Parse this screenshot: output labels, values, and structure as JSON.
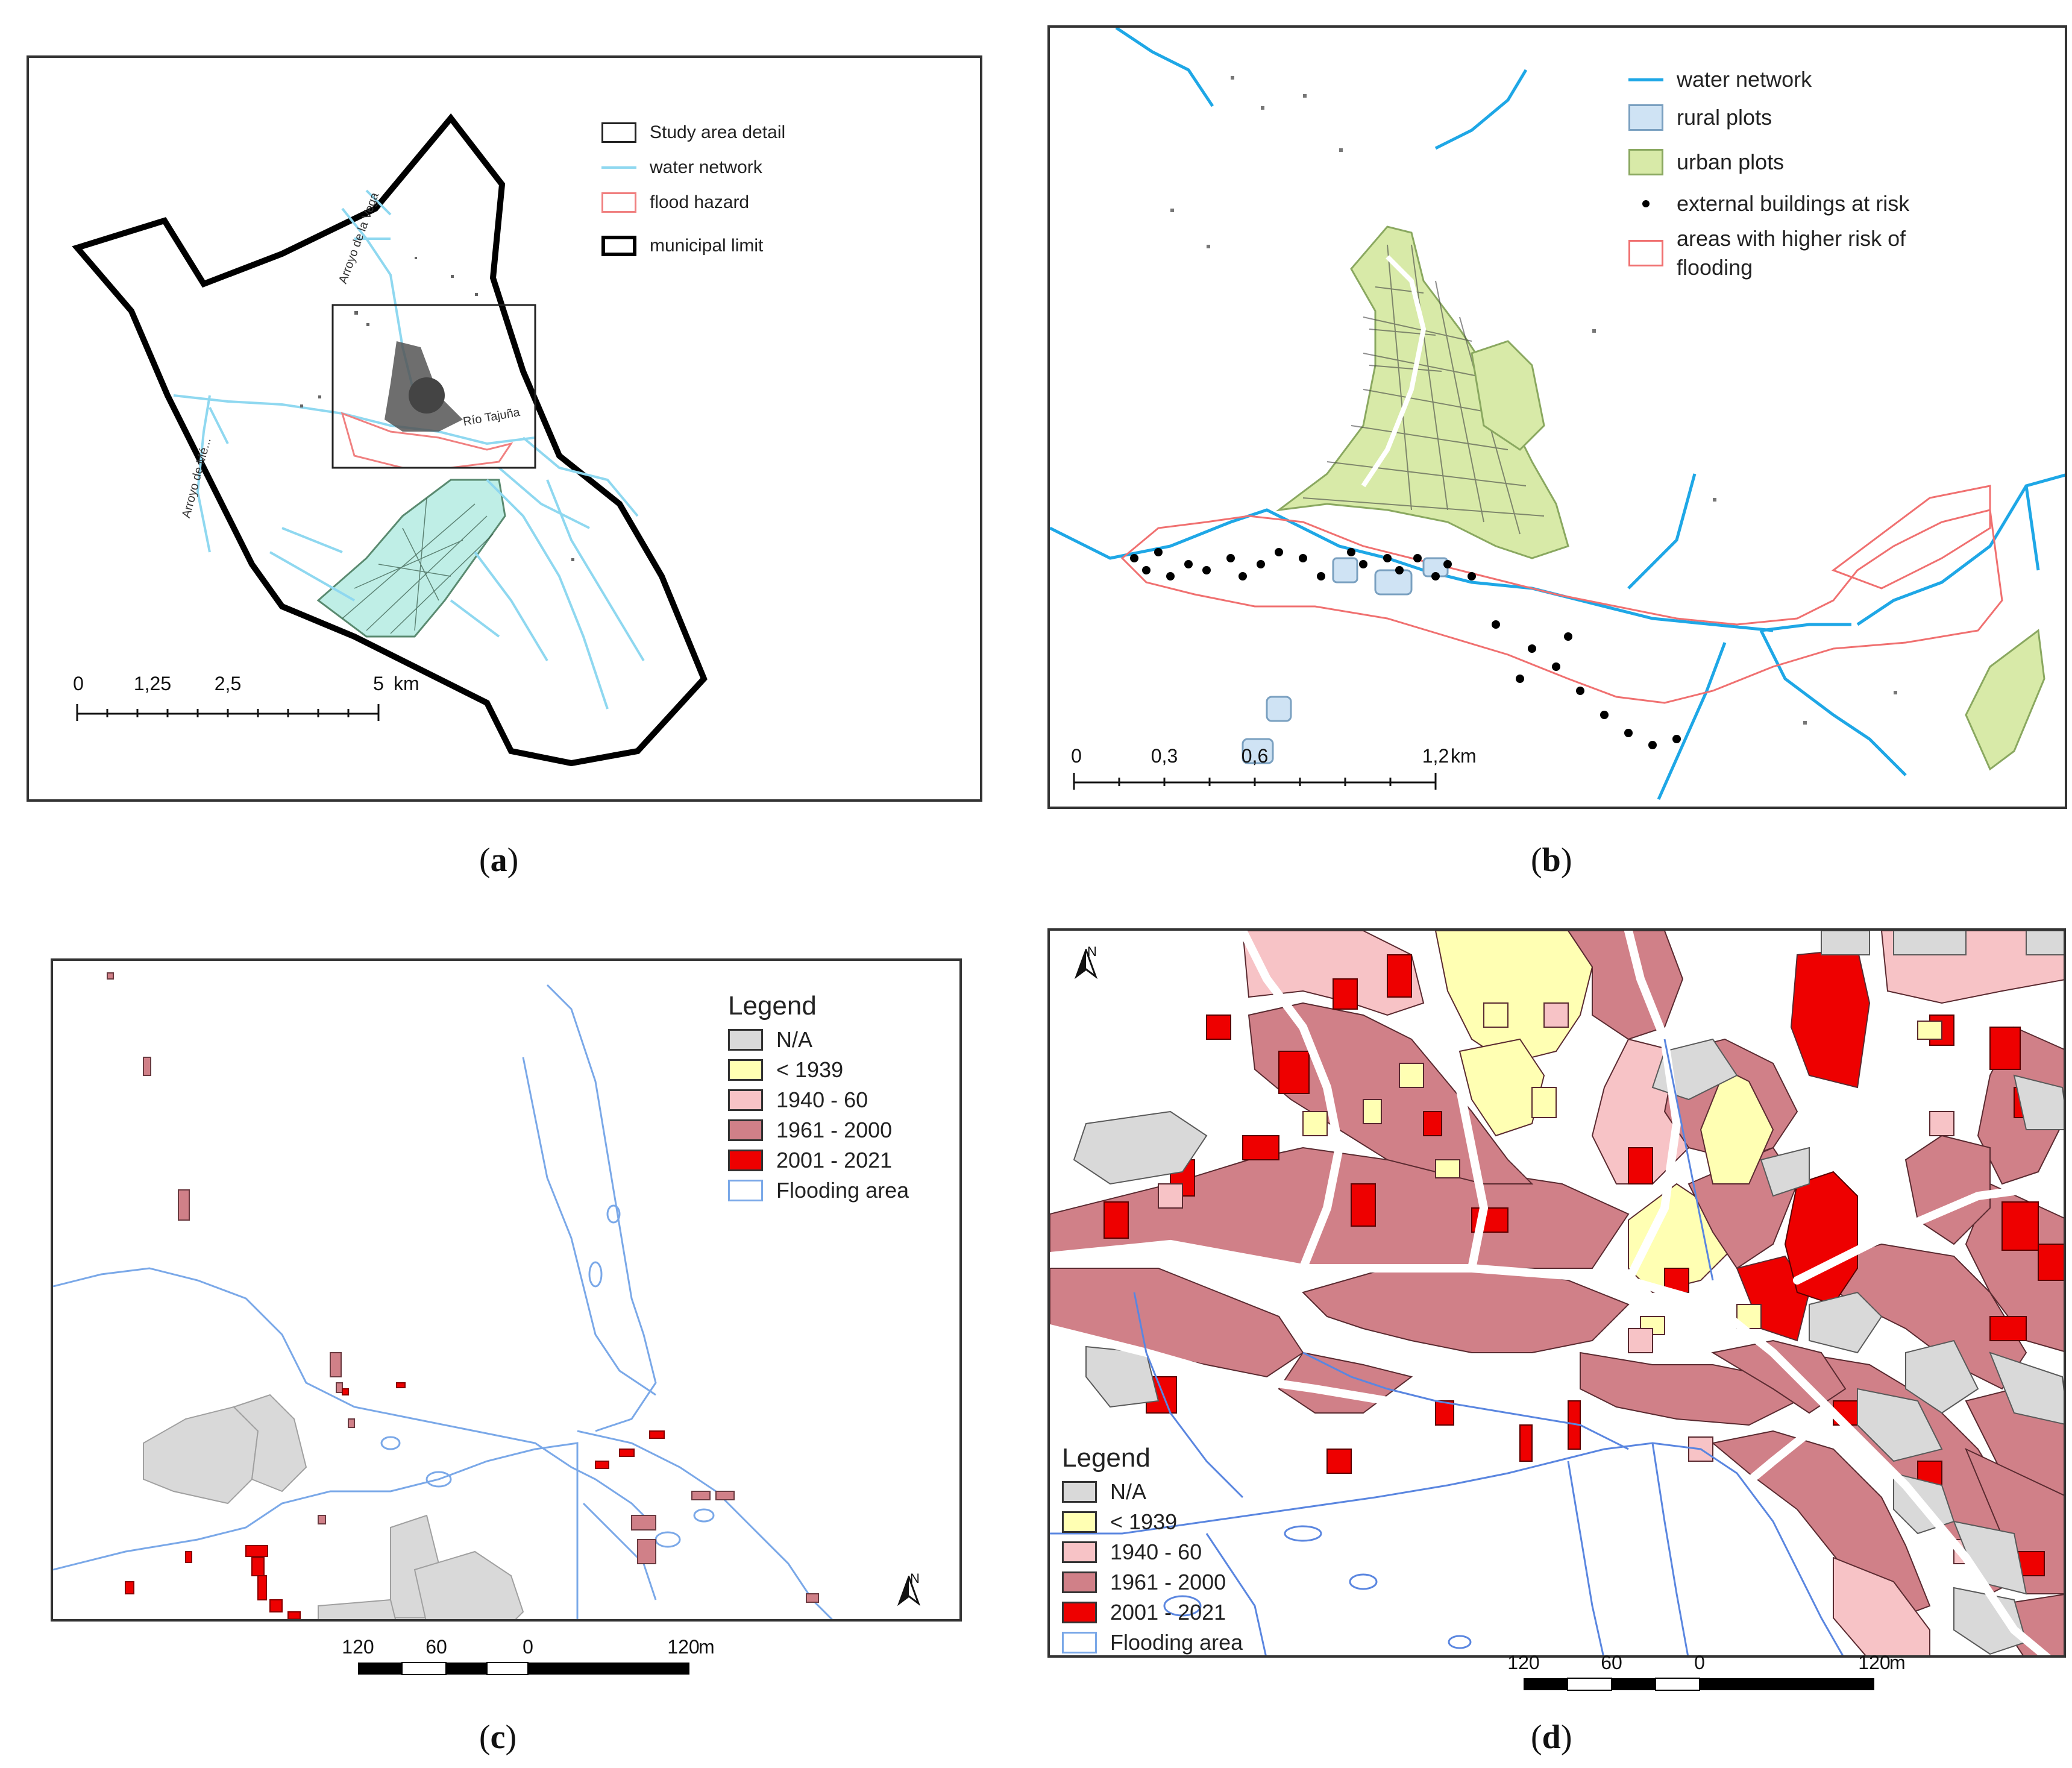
{
  "panels": {
    "a": {
      "caption_letter": "a",
      "legend": [
        {
          "label": "Study area detail",
          "kind": "box",
          "stroke": "#222222",
          "fill": "#ffffff"
        },
        {
          "label": "water network",
          "kind": "line",
          "stroke": "#8fd8f0"
        },
        {
          "label": "flood hazard",
          "kind": "box",
          "stroke": "#f08080",
          "fill": "#ffffff"
        },
        {
          "label": "municipal limit",
          "kind": "box-thick",
          "stroke": "#000000",
          "fill": "#ffffff"
        }
      ],
      "place_labels": {
        "arroyo_vega": "Arroyo de la Vega",
        "rio": "Río Tajuña",
        "arroyo_m": "Arroyo de Mé..."
      },
      "scale": {
        "ticks": [
          "0",
          "1,25",
          "2,5",
          "5"
        ],
        "unit": "km"
      }
    },
    "b": {
      "caption_letter": "b",
      "legend": [
        {
          "label": "water network",
          "kind": "line",
          "stroke": "#1ea7e6"
        },
        {
          "label": "rural plots",
          "kind": "box",
          "stroke": "#7aa0c0",
          "fill": "#cfe3f4"
        },
        {
          "label": "urban plots",
          "kind": "box",
          "stroke": "#8aa860",
          "fill": "#d8eaa8"
        },
        {
          "label": "external buildings at risk",
          "kind": "dot",
          "stroke": "#000000"
        },
        {
          "label": "areas with higher risk of flooding",
          "kind": "box",
          "stroke": "#f07070",
          "fill": "#ffffff"
        }
      ],
      "scale": {
        "ticks": [
          "0",
          "0,3",
          "0,6",
          "1,2"
        ],
        "unit": "km"
      }
    },
    "c": {
      "caption_letter": "c",
      "legend_title": "Legend",
      "legend": [
        {
          "label": "N/A",
          "fill": "#d9d9d9"
        },
        {
          "label": "< 1939",
          "fill": "#ffffb3"
        },
        {
          "label": "1940 - 60",
          "fill": "#f7c3c6"
        },
        {
          "label": "1961 - 2000",
          "fill": "#d08088"
        },
        {
          "label": "2001 - 2021",
          "fill": "#ee0000"
        },
        {
          "label": "Flooding area",
          "fill": "#ffffff",
          "stroke": "#7aa8e8"
        }
      ],
      "north": "N",
      "scale": {
        "ticks": [
          "120",
          "60",
          "0",
          "120"
        ],
        "unit": "m"
      }
    },
    "d": {
      "caption_letter": "d",
      "legend_title": "Legend",
      "legend": [
        {
          "label": "N/A",
          "fill": "#d9d9d9"
        },
        {
          "label": "< 1939",
          "fill": "#ffffb3"
        },
        {
          "label": "1940 - 60",
          "fill": "#f7c3c6"
        },
        {
          "label": "1961 - 2000",
          "fill": "#d08088"
        },
        {
          "label": "2001 - 2021",
          "fill": "#ee0000"
        },
        {
          "label": "Flooding area",
          "fill": "#ffffff",
          "stroke": "#7aa8e8"
        }
      ],
      "north": "N",
      "scale": {
        "ticks": [
          "120",
          "60",
          "0",
          "120"
        ],
        "unit": "m"
      }
    }
  }
}
